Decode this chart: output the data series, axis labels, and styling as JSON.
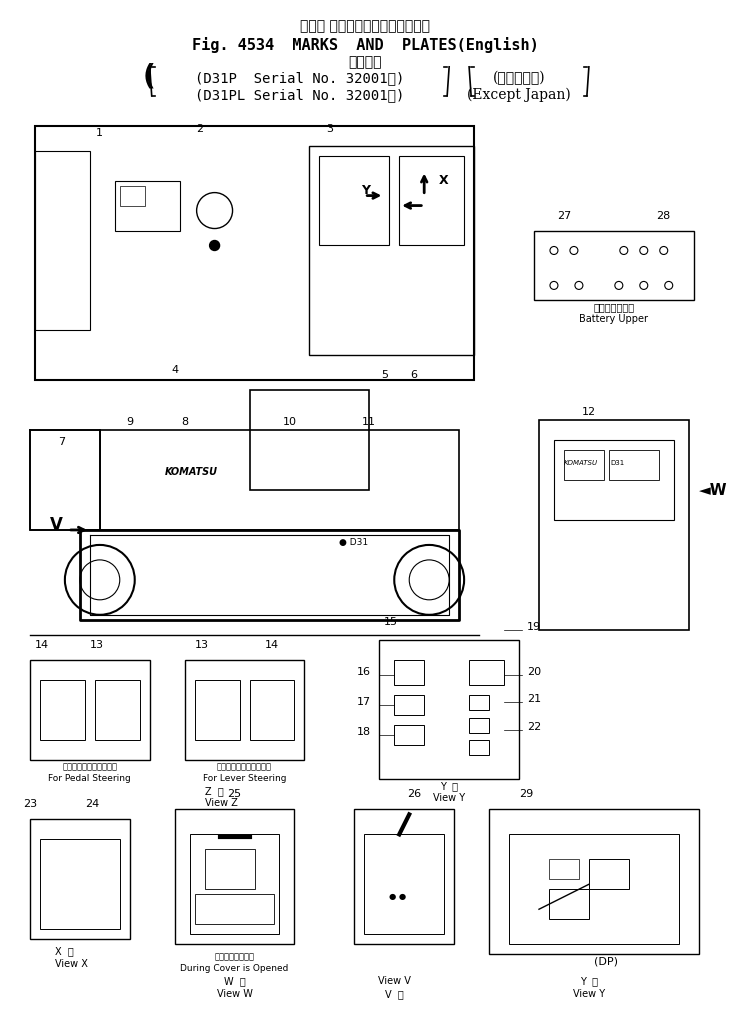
{
  "title_jp": "マーク およびプレート（英　語）",
  "title_en": "Fig. 4534  MARKS  AND  PLATES(English)",
  "subtitle_jp": "適用号機",
  "model1": "(D31P  Serial No. 32001～)",
  "model2": "(D31PL Serial No. 32001～)",
  "region_jp": "(海　外　向)",
  "region_en": "Except Japan)",
  "bg_color": "#ffffff",
  "line_color": "#000000",
  "text_color": "#000000"
}
